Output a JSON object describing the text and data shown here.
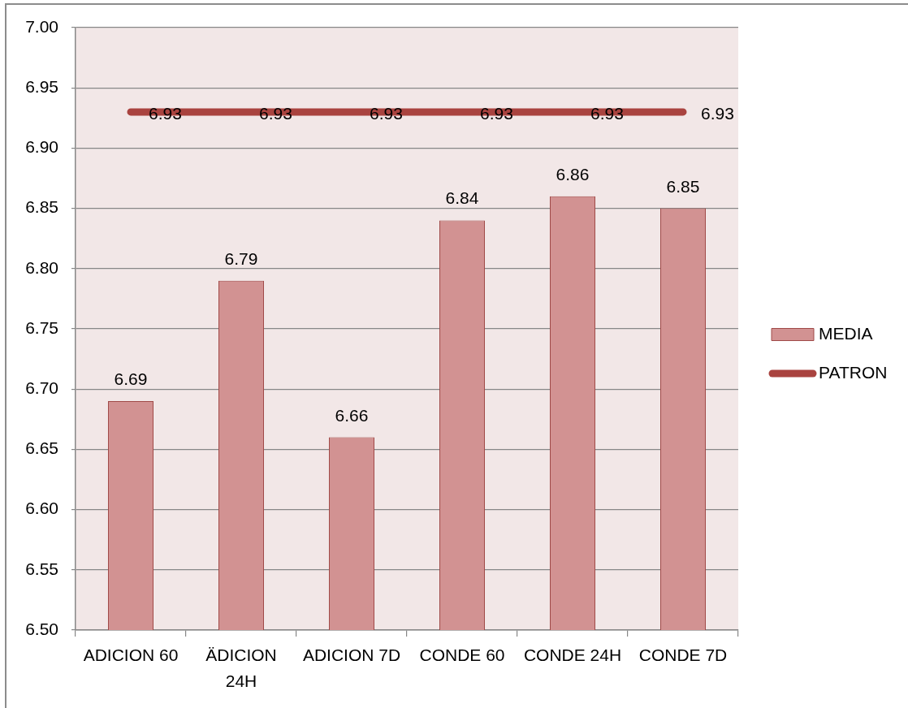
{
  "chart_data": {
    "type": "bar",
    "categories": [
      "ADICION 60",
      "ÄDICION 24H",
      "ADICION 7D",
      "CONDE 60",
      "CONDE 24H",
      "CONDE 7D"
    ],
    "series": [
      {
        "name": "MEDIA",
        "color": "#d29292",
        "values": [
          6.69,
          6.79,
          6.66,
          6.84,
          6.86,
          6.85
        ]
      },
      {
        "name": "PATRON",
        "type": "line",
        "color": "#a9433f",
        "values": [
          6.93,
          6.93,
          6.93,
          6.93,
          6.93,
          6.93
        ]
      }
    ],
    "ylim": [
      6.5,
      7.0
    ],
    "yticks": [
      {
        "value": 6.5,
        "label": "6.50"
      },
      6.55,
      {
        "value": 6.6,
        "label": "6.60"
      },
      6.65,
      {
        "value": 6.7,
        "label": "6.70"
      },
      6.75,
      {
        "value": 6.8,
        "label": "6.80"
      },
      6.85,
      {
        "value": 6.9,
        "label": "6.90"
      },
      6.95,
      {
        "value": 7,
        "label": "7.00"
      }
    ],
    "grid": "y",
    "legend": "right",
    "data_labels": true,
    "marker": "none"
  }
}
